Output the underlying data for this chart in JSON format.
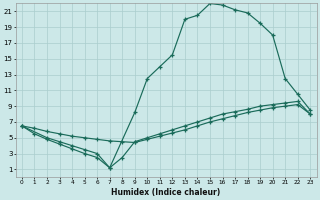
{
  "xlabel": "Humidex (Indice chaleur)",
  "bg_color": "#cce8e8",
  "grid_color": "#aacece",
  "line_color": "#1a6b5a",
  "xlim": [
    -0.5,
    23.5
  ],
  "ylim": [
    0,
    22
  ],
  "xtick_labels": [
    "0",
    "1",
    "2",
    "3",
    "4",
    "5",
    "6",
    "7",
    "8",
    "9",
    "10",
    "11",
    "12",
    "13",
    "14",
    "15",
    "16",
    "17",
    "18",
    "19",
    "20",
    "21",
    "22",
    "23"
  ],
  "xtick_vals": [
    0,
    1,
    2,
    3,
    4,
    5,
    6,
    7,
    8,
    9,
    10,
    11,
    12,
    13,
    14,
    15,
    16,
    17,
    18,
    19,
    20,
    21,
    22,
    23
  ],
  "ytick_vals": [
    1,
    3,
    5,
    7,
    9,
    11,
    13,
    15,
    17,
    19,
    21
  ],
  "line_diagonal_x": [
    0,
    1,
    2,
    3,
    4,
    5,
    6,
    7,
    8,
    9,
    10,
    11,
    12,
    13,
    14,
    15,
    16,
    17,
    18,
    19,
    20,
    21,
    22,
    23
  ],
  "line_diagonal_y": [
    6.5,
    6.2,
    5.8,
    5.5,
    5.2,
    5.0,
    4.8,
    4.6,
    4.5,
    4.4,
    4.8,
    5.2,
    5.6,
    6.0,
    6.5,
    7.0,
    7.4,
    7.8,
    8.2,
    8.5,
    8.8,
    9.0,
    9.2,
    8.0
  ],
  "line_zigzag_x": [
    0,
    1,
    2,
    3,
    4,
    5,
    6,
    7,
    8,
    9,
    10,
    11,
    12,
    13,
    14,
    15,
    16,
    17,
    18,
    19,
    20,
    21,
    22,
    23
  ],
  "line_zigzag_y": [
    6.5,
    5.5,
    4.8,
    4.2,
    3.6,
    3.0,
    2.5,
    1.2,
    2.5,
    4.5,
    5.0,
    5.5,
    6.0,
    6.5,
    7.0,
    7.5,
    8.0,
    8.3,
    8.6,
    9.0,
    9.2,
    9.4,
    9.6,
    8.0
  ],
  "line_main_x": [
    0,
    2,
    3,
    4,
    5,
    6,
    7,
    9,
    10,
    11,
    12,
    13,
    14,
    15,
    16,
    17,
    18,
    19,
    20,
    21,
    22,
    23
  ],
  "line_main_y": [
    6.5,
    5.0,
    4.5,
    4.0,
    3.5,
    3.0,
    1.2,
    8.2,
    12.5,
    14.0,
    15.5,
    20.0,
    20.5,
    22.0,
    21.8,
    21.2,
    20.8,
    19.5,
    18.0,
    12.5,
    10.5,
    8.5
  ]
}
